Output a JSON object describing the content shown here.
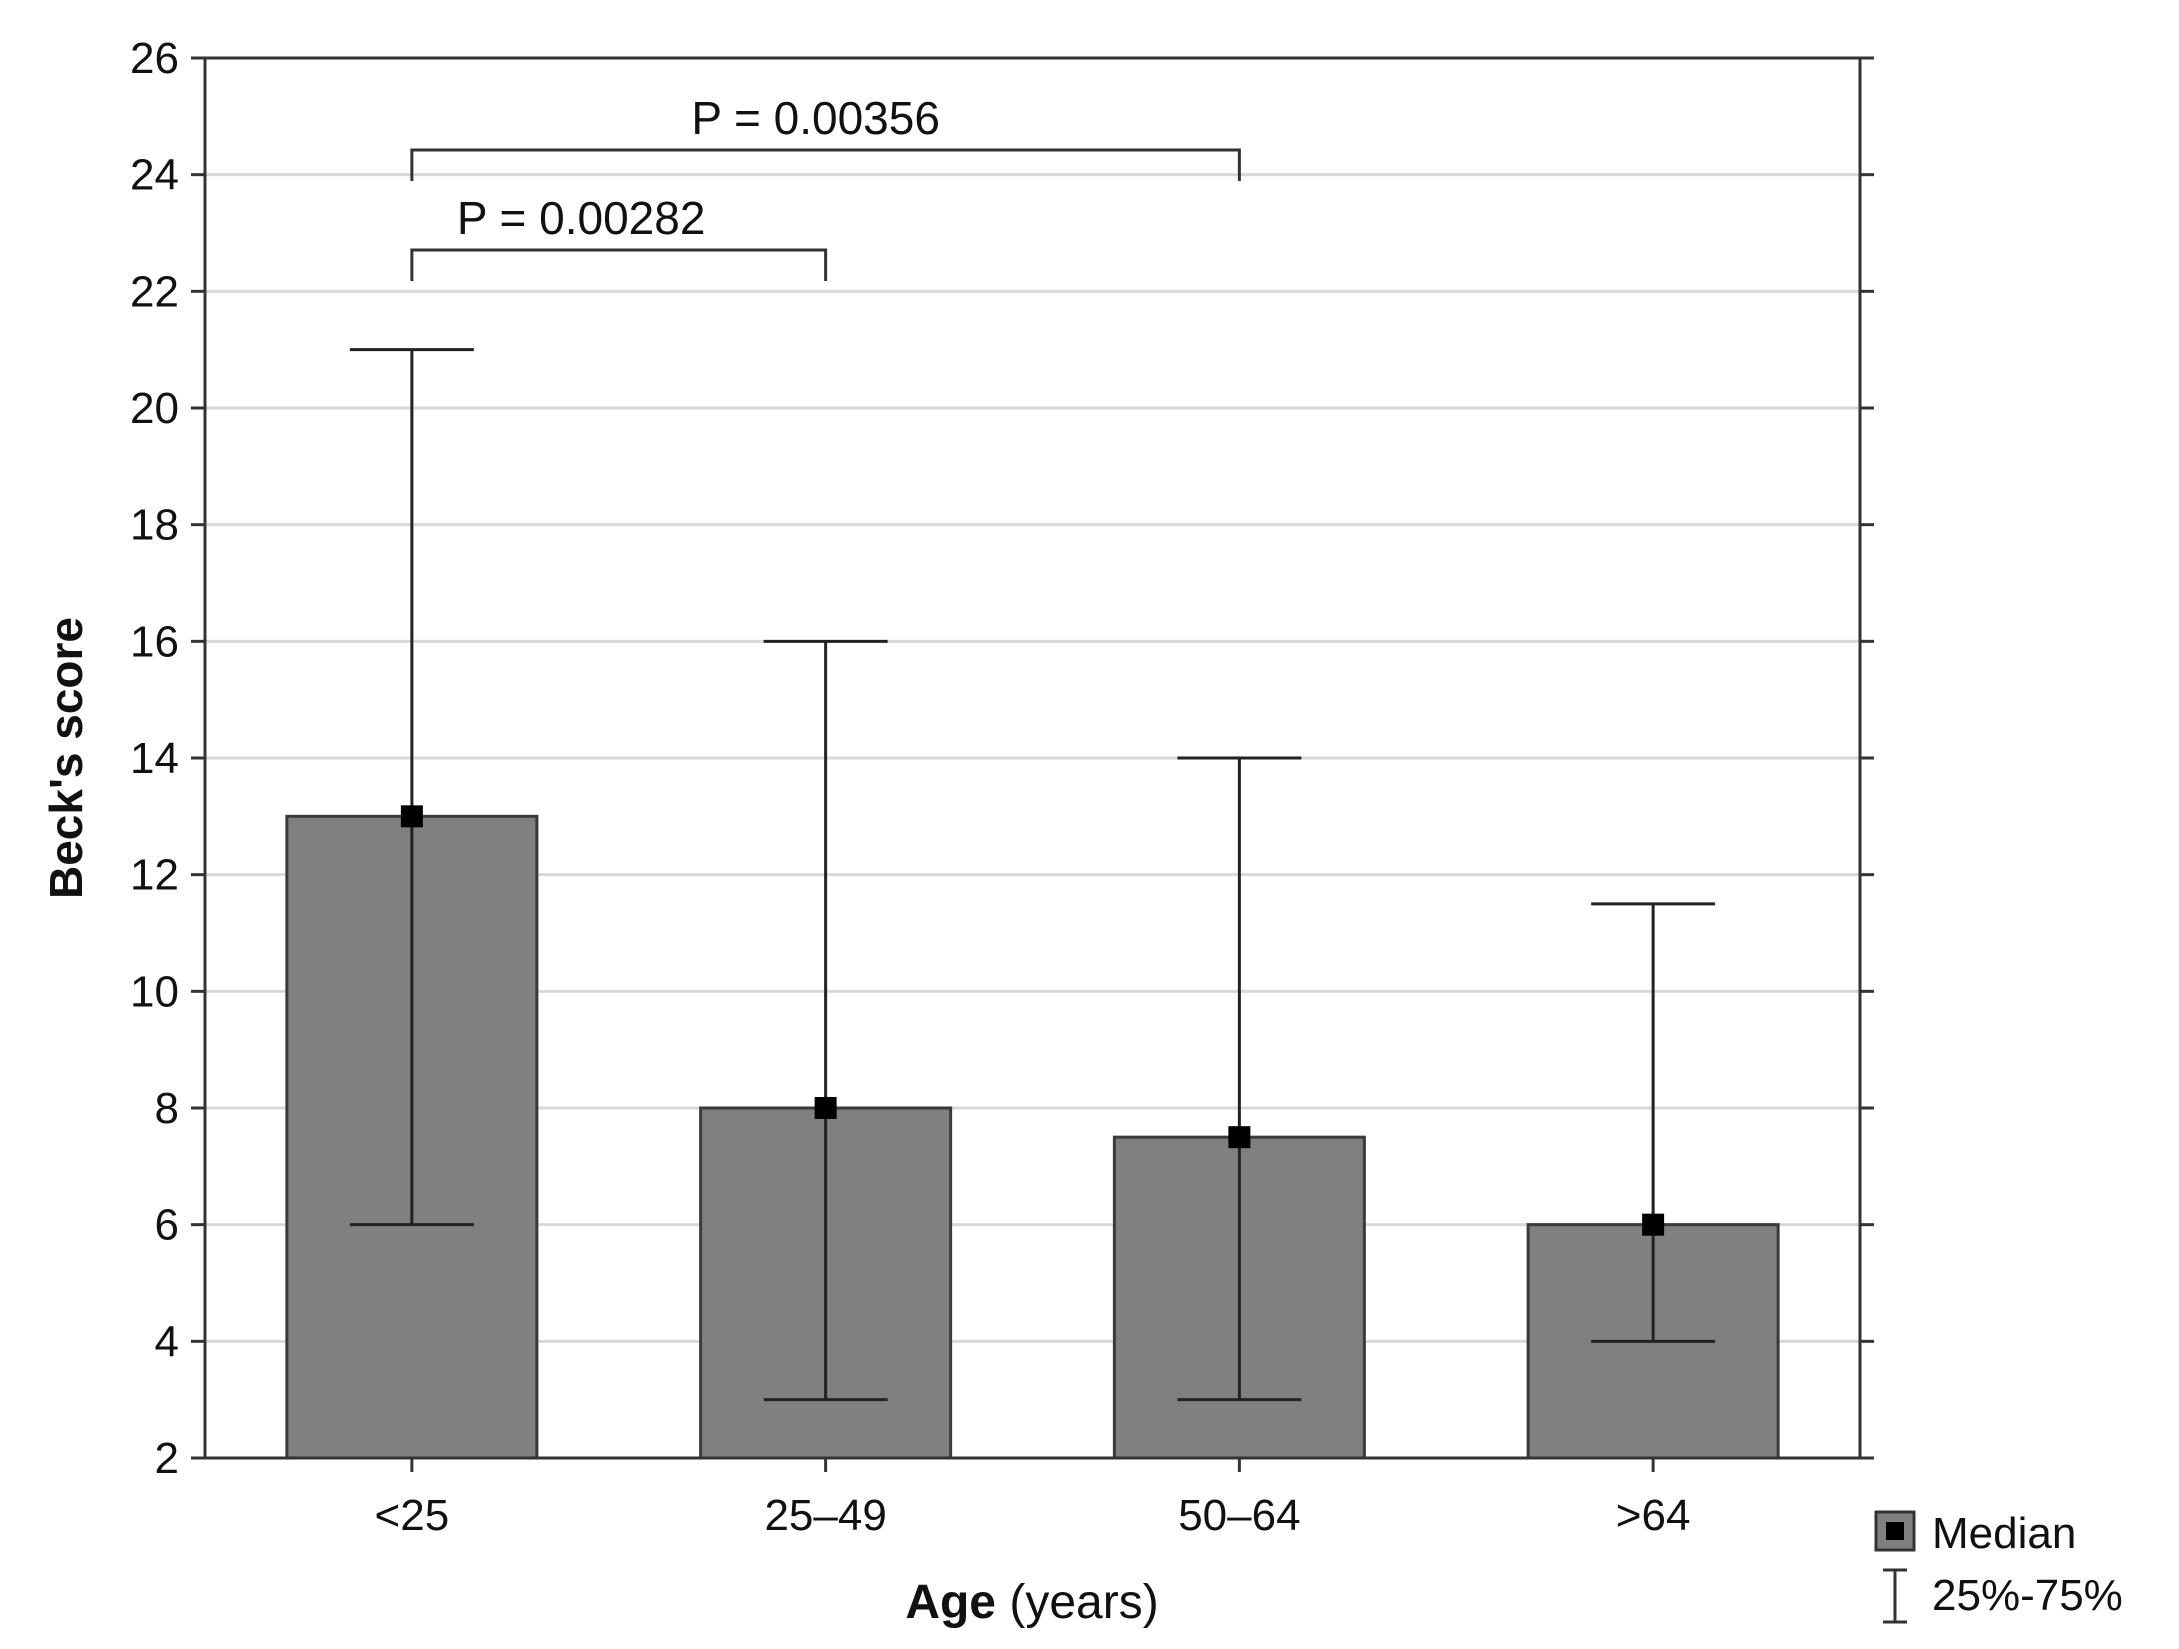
{
  "chart_data": {
    "type": "bar",
    "title": "",
    "xlabel_bold": "Age",
    "xlabel_rest": " (years)",
    "ylabel": "Beck's score",
    "ylim": [
      2,
      26
    ],
    "yticks": [
      "2",
      "4",
      "6",
      "8",
      "10",
      "12",
      "14",
      "16",
      "18",
      "20",
      "22",
      "24",
      "26"
    ],
    "grid": true,
    "categories": [
      "<25",
      "25–49",
      "50–64",
      ">64"
    ],
    "series": [
      {
        "name": "Median",
        "values": [
          13,
          8,
          7.5,
          6
        ]
      }
    ],
    "iqr_low": [
      6,
      3,
      3,
      4
    ],
    "iqr_high": [
      21,
      16,
      14,
      11.5
    ],
    "comparisons": [
      {
        "from": "<25",
        "to": "50–64",
        "label": "P = 0.00356"
      },
      {
        "from": "<25",
        "to": "25–49",
        "label": "P = 0.00282"
      }
    ],
    "legend": {
      "position": "bottom-right",
      "median_label": "Median",
      "range_label": "25%-75%"
    },
    "colors": {
      "bar": "#808080",
      "bar_edge": "#3a3a3a",
      "line": "#222222",
      "grid": "#d8d8d8",
      "marker": "#000000"
    }
  }
}
